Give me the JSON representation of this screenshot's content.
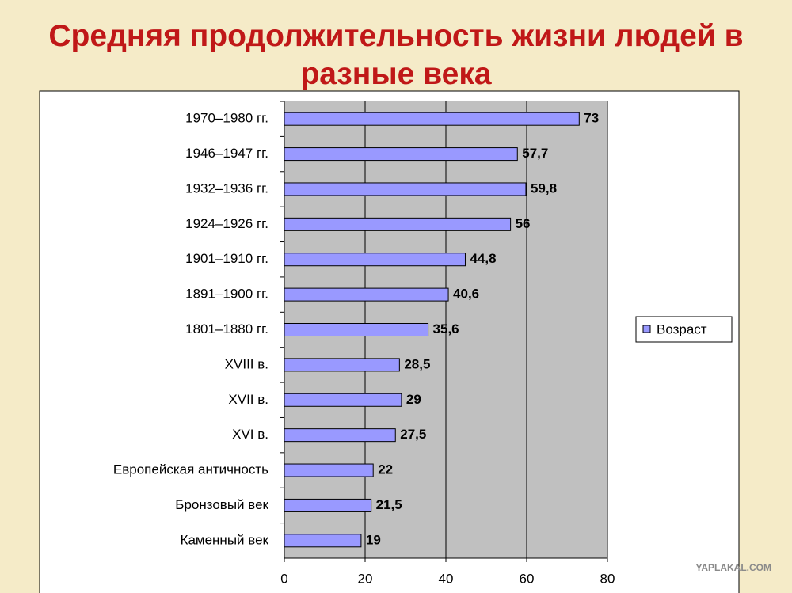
{
  "chart_data": {
    "type": "bar",
    "orientation": "horizontal",
    "title": "Средняя продолжительность жизни людей в разные века",
    "categories": [
      "1970–1980 гг.",
      "1946–1947 гг.",
      "1932–1936 гг.",
      "1924–1926 гг.",
      "1901–1910 гг.",
      "1891–1900 гг.",
      "1801–1880 гг.",
      "XVIII в.",
      "XVII в.",
      "XVI в.",
      "Европейская античность",
      "Бронзовый век",
      "Каменный век"
    ],
    "series": [
      {
        "name": "Возраст",
        "color": "#9999ff",
        "values": [
          73,
          57.7,
          59.8,
          56,
          44.8,
          40.6,
          35.6,
          28.5,
          29,
          27.5,
          22,
          21.5,
          19
        ],
        "value_labels": [
          "73",
          "57,7",
          "59,8",
          "56",
          "44,8",
          "40,6",
          "35,6",
          "28,5",
          "29",
          "27,5",
          "22",
          "21,5",
          "19"
        ]
      }
    ],
    "xlim": [
      0,
      80
    ],
    "xticks": [
      0,
      20,
      40,
      60,
      80
    ],
    "grid": true,
    "legend": "right",
    "watermark": "YAPLAKAL.COM"
  }
}
